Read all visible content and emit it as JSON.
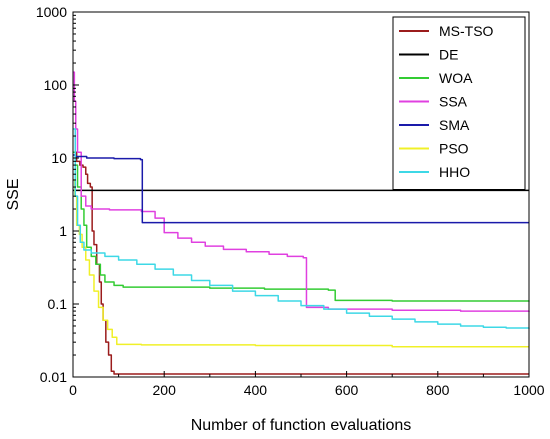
{
  "chart_data": {
    "type": "line",
    "title": "",
    "xlabel": "Number of function evaluations",
    "ylabel": "SSE",
    "xlim": [
      0,
      1000
    ],
    "ylim": [
      0.01,
      1000
    ],
    "yscale": "log",
    "grid": false,
    "legend_position": "top-right",
    "x_ticks": [
      0,
      200,
      400,
      600,
      800,
      1000
    ],
    "x_tick_labels": [
      "0",
      "200",
      "400",
      "600",
      "800",
      "1000"
    ],
    "y_ticks": [
      0.01,
      0.1,
      1,
      10,
      100,
      1000
    ],
    "y_tick_labels": [
      "0.01",
      "0.1",
      "1",
      "10",
      "100",
      "1000"
    ],
    "series": [
      {
        "name": "MS-TSO",
        "color": "#9b1c1c",
        "points": [
          [
            0,
            12
          ],
          [
            8,
            9
          ],
          [
            15,
            8
          ],
          [
            22,
            7.5
          ],
          [
            28,
            6
          ],
          [
            32,
            4.5
          ],
          [
            38,
            4
          ],
          [
            42,
            1.0
          ],
          [
            46,
            0.65
          ],
          [
            52,
            0.35
          ],
          [
            58,
            0.2
          ],
          [
            62,
            0.1
          ],
          [
            66,
            0.06
          ],
          [
            72,
            0.03
          ],
          [
            78,
            0.02
          ],
          [
            84,
            0.012
          ],
          [
            90,
            0.011
          ],
          [
            200,
            0.011
          ],
          [
            500,
            0.011
          ],
          [
            1000,
            0.011
          ]
        ]
      },
      {
        "name": "DE",
        "color": "#000000",
        "points": [
          [
            0,
            3.6
          ],
          [
            1000,
            3.6
          ]
        ]
      },
      {
        "name": "WOA",
        "color": "#33cc33",
        "points": [
          [
            0,
            12
          ],
          [
            5,
            8
          ],
          [
            10,
            4
          ],
          [
            18,
            2
          ],
          [
            24,
            1.2
          ],
          [
            30,
            0.6
          ],
          [
            40,
            0.45
          ],
          [
            50,
            0.35
          ],
          [
            60,
            0.25
          ],
          [
            70,
            0.2
          ],
          [
            90,
            0.18
          ],
          [
            110,
            0.17
          ],
          [
            300,
            0.165
          ],
          [
            420,
            0.16
          ],
          [
            560,
            0.155
          ],
          [
            575,
            0.112
          ],
          [
            700,
            0.11
          ],
          [
            1000,
            0.108
          ]
        ]
      },
      {
        "name": "SSA",
        "color": "#e040e0",
        "points": [
          [
            0,
            150
          ],
          [
            3,
            60
          ],
          [
            6,
            25
          ],
          [
            10,
            12
          ],
          [
            18,
            3
          ],
          [
            28,
            2.2
          ],
          [
            40,
            2.0
          ],
          [
            80,
            1.95
          ],
          [
            150,
            1.85
          ],
          [
            180,
            1.5
          ],
          [
            200,
            0.95
          ],
          [
            230,
            0.8
          ],
          [
            260,
            0.7
          ],
          [
            290,
            0.62
          ],
          [
            330,
            0.56
          ],
          [
            380,
            0.52
          ],
          [
            430,
            0.48
          ],
          [
            470,
            0.45
          ],
          [
            505,
            0.43
          ],
          [
            512,
            0.09
          ],
          [
            560,
            0.085
          ],
          [
            700,
            0.082
          ],
          [
            850,
            0.08
          ],
          [
            1000,
            0.078
          ]
        ]
      },
      {
        "name": "SMA",
        "color": "#1a1aaa",
        "points": [
          [
            0,
            11
          ],
          [
            5,
            10.5
          ],
          [
            30,
            10
          ],
          [
            90,
            9.8
          ],
          [
            148,
            9.5
          ],
          [
            152,
            1.3
          ],
          [
            300,
            1.3
          ],
          [
            600,
            1.3
          ],
          [
            1000,
            1.3
          ]
        ]
      },
      {
        "name": "PSO",
        "color": "#f0f028",
        "points": [
          [
            0,
            5
          ],
          [
            4,
            3
          ],
          [
            8,
            1.2
          ],
          [
            14,
            0.9
          ],
          [
            20,
            0.6
          ],
          [
            28,
            0.4
          ],
          [
            36,
            0.25
          ],
          [
            46,
            0.15
          ],
          [
            56,
            0.09
          ],
          [
            66,
            0.06
          ],
          [
            76,
            0.045
          ],
          [
            86,
            0.035
          ],
          [
            96,
            0.028
          ],
          [
            150,
            0.0275
          ],
          [
            400,
            0.027
          ],
          [
            700,
            0.026
          ],
          [
            1000,
            0.026
          ]
        ]
      },
      {
        "name": "HHO",
        "color": "#3dd8e6",
        "points": [
          [
            0,
            25
          ],
          [
            5,
            3
          ],
          [
            10,
            1.2
          ],
          [
            16,
            0.7
          ],
          [
            24,
            0.55
          ],
          [
            40,
            0.5
          ],
          [
            70,
            0.45
          ],
          [
            100,
            0.4
          ],
          [
            140,
            0.35
          ],
          [
            180,
            0.3
          ],
          [
            220,
            0.25
          ],
          [
            260,
            0.21
          ],
          [
            300,
            0.18
          ],
          [
            350,
            0.15
          ],
          [
            400,
            0.13
          ],
          [
            450,
            0.11
          ],
          [
            500,
            0.095
          ],
          [
            550,
            0.085
          ],
          [
            600,
            0.075
          ],
          [
            650,
            0.068
          ],
          [
            700,
            0.062
          ],
          [
            750,
            0.057
          ],
          [
            800,
            0.053
          ],
          [
            850,
            0.05
          ],
          [
            900,
            0.048
          ],
          [
            950,
            0.047
          ],
          [
            1000,
            0.046
          ]
        ]
      }
    ]
  }
}
